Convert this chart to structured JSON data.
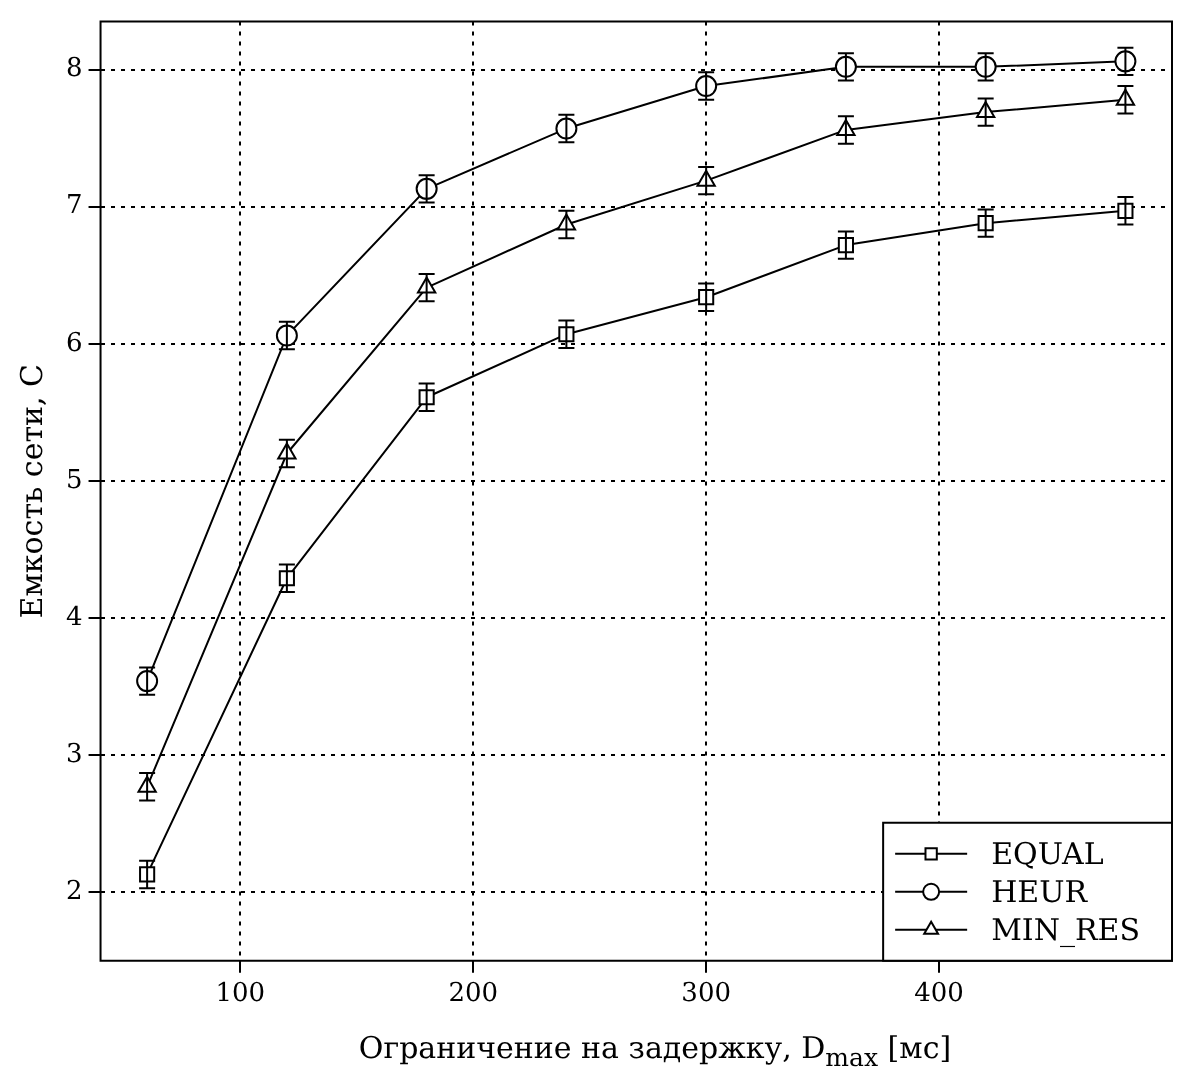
{
  "chart_data": {
    "type": "line",
    "xlabel": "Ограничение на задержку, D$_{max}$ [мс]",
    "ylabel": "Емкость сети, C",
    "x": [
      60,
      120,
      180,
      240,
      300,
      360,
      420,
      480
    ],
    "series": [
      {
        "name": "EQUAL",
        "color": "#000000",
        "marker": "square",
        "values": [
          2.13,
          4.29,
          5.61,
          6.07,
          6.34,
          6.72,
          6.88,
          6.97
        ],
        "errors": [
          0.1,
          0.1,
          0.1,
          0.1,
          0.1,
          0.1,
          0.1,
          0.1
        ]
      },
      {
        "name": "HEUR",
        "color": "#000000",
        "marker": "circle",
        "values": [
          3.54,
          6.06,
          7.13,
          7.57,
          7.88,
          8.02,
          8.02,
          8.06
        ],
        "errors": [
          0.1,
          0.1,
          0.1,
          0.1,
          0.1,
          0.1,
          0.1,
          0.1
        ]
      },
      {
        "name": "MIN_RES",
        "color": "#000000",
        "marker": "triangle",
        "values": [
          2.77,
          5.2,
          6.41,
          6.87,
          7.19,
          7.56,
          7.69,
          7.78
        ],
        "errors": [
          0.1,
          0.1,
          0.1,
          0.1,
          0.1,
          0.1,
          0.1,
          0.1
        ]
      }
    ],
    "xlim": [
      40,
      500
    ],
    "ylim": [
      1.5,
      8.35
    ],
    "xticks": [
      100,
      200,
      300,
      400
    ],
    "yticks": [
      2,
      3,
      4,
      5,
      6,
      7,
      8
    ],
    "grid": true,
    "legend": "bottom right",
    "line_style": "solid"
  }
}
